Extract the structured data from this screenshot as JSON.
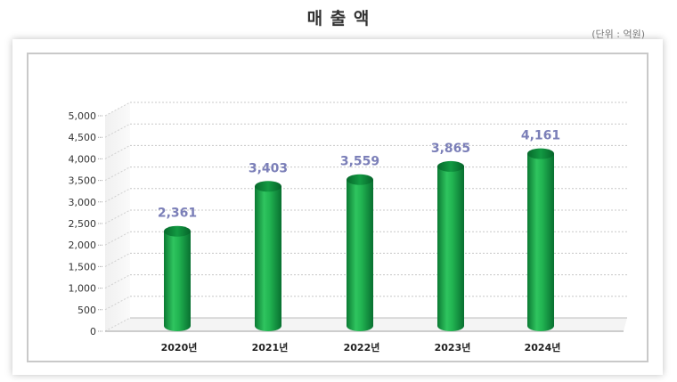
{
  "page": {
    "title": "매 출 액"
  },
  "chart_data": {
    "type": "bar",
    "title": "",
    "unit_label": "(단위 : 억원)",
    "categories": [
      "2020년",
      "2021년",
      "2022년",
      "2023년",
      "2024년"
    ],
    "values": [
      2361,
      3403,
      3559,
      3865,
      4161
    ],
    "value_labels": [
      "2,361",
      "3,403",
      "3,559",
      "3,865",
      "4,161"
    ],
    "ylim": [
      0,
      5000
    ],
    "yticks": [
      0,
      500,
      1000,
      1500,
      2000,
      2500,
      3000,
      3500,
      4000,
      4500,
      5000
    ],
    "ytick_labels": [
      "0",
      "500",
      "1,000",
      "1,500",
      "2,000",
      "2,500",
      "3,000",
      "3,500",
      "4,000",
      "4,500",
      "5,000"
    ],
    "grid": true,
    "bar_color": "#1aa64a",
    "label_color": "#7b7fb8"
  }
}
